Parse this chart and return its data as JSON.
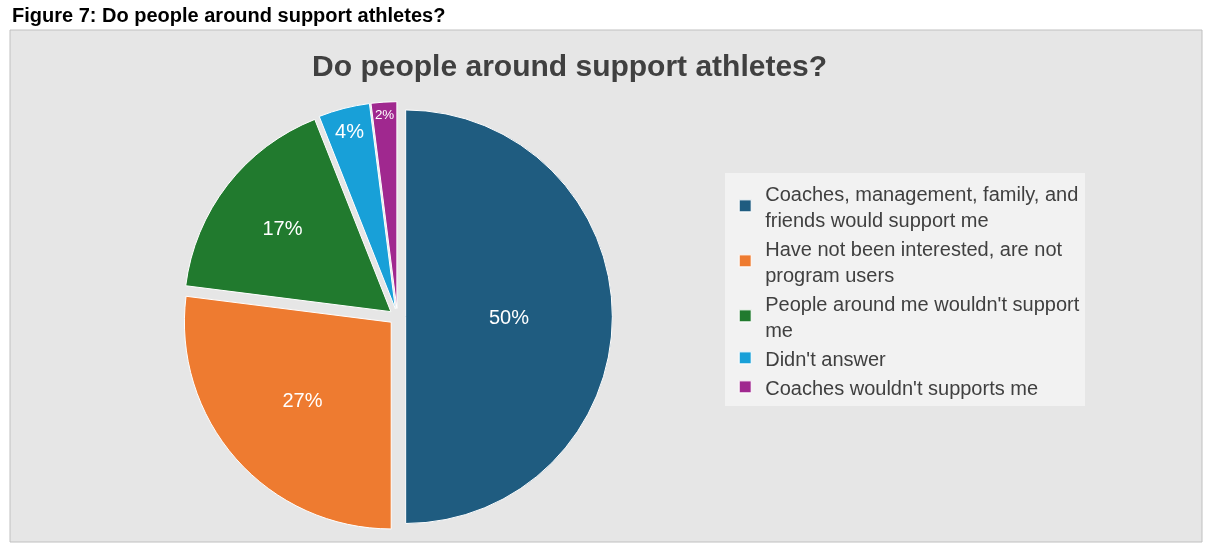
{
  "chart_data": {
    "type": "pie",
    "title": "Do people around support athletes?",
    "annotations": [
      "Figure 7: Do people around support athletes?"
    ],
    "categories": [
      "Coaches, management, family, and friends would support me",
      "Have not been interested, are not program users",
      "People around me wouldn't support me",
      "Didn't answer",
      "Coaches wouldn't supports me"
    ],
    "values": [
      50,
      27,
      17,
      4,
      2
    ],
    "value_labels": [
      "50%",
      "27%",
      "17%",
      "4%",
      "2%"
    ],
    "colors": [
      "#1f5c80",
      "#ee7b30",
      "#217a2e",
      "#18a0d8",
      "#a0288f"
    ],
    "legend": "right"
  }
}
